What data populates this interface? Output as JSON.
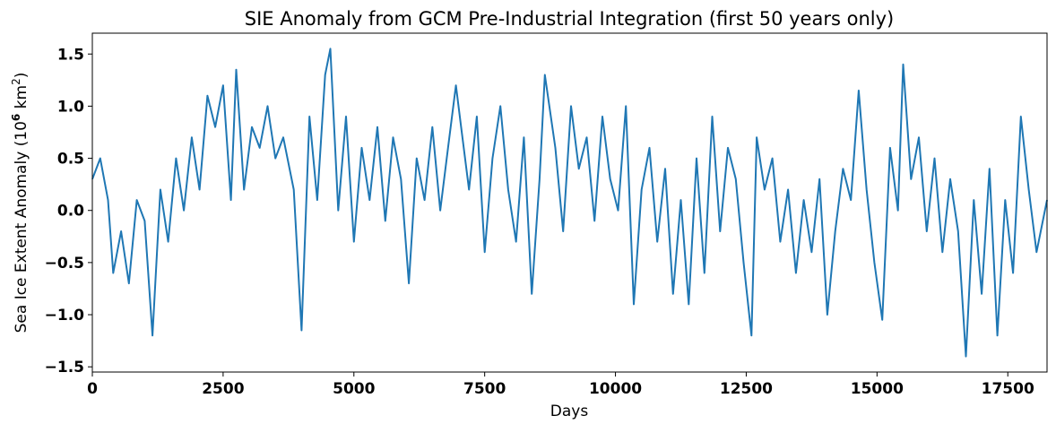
{
  "chart_data": {
    "type": "line",
    "title": "SIE Anomaly from GCM Pre-Industrial Integration (first 50 years only)",
    "xlabel": "Days",
    "ylabel": "Sea Ice Extent Anomaly (10",
    "ylabel_sup": "6",
    "ylabel_unit": " km",
    "ylabel_unit_sup": "2",
    "ylabel_close": ")",
    "xlim": [
      0,
      18250
    ],
    "ylim": [
      -1.55,
      1.7
    ],
    "x_ticks": [
      0,
      2500,
      5000,
      7500,
      10000,
      12500,
      15000,
      17500
    ],
    "x_tick_labels": [
      "0",
      "2500",
      "5000",
      "7500",
      "10000",
      "12500",
      "15000",
      "17500"
    ],
    "y_ticks": [
      -1.5,
      -1.0,
      -0.5,
      0.0,
      0.5,
      1.0,
      1.5
    ],
    "y_tick_labels": [
      "−1.5",
      "−1.0",
      "−0.5",
      "0.0",
      "0.5",
      "1.0",
      "1.5"
    ],
    "grid": false,
    "line_color": "#1f77b4",
    "series": [
      {
        "x": [
          0,
          150,
          300,
          400,
          550,
          700,
          850,
          1000,
          1150,
          1300,
          1450,
          1600,
          1750,
          1900,
          2050,
          2200,
          2350,
          2500,
          2650,
          2750,
          2900,
          3050,
          3200,
          3350,
          3500,
          3650,
          3850,
          4000,
          4150,
          4300,
          4450,
          4550,
          4700,
          4850,
          5000,
          5150,
          5300,
          5450,
          5600,
          5750,
          5900,
          6050,
          6200,
          6350,
          6500,
          6650,
          6800,
          6950,
          7050,
          7200,
          7350,
          7500,
          7650,
          7800,
          7950,
          8100,
          8250,
          8400,
          8550,
          8650,
          8850,
          9000,
          9150,
          9300,
          9450,
          9600,
          9750,
          9900,
          10050,
          10200,
          10350,
          10500,
          10650,
          10800,
          10950,
          11100,
          11250,
          11400,
          11550,
          11700,
          11850,
          12000,
          12150,
          12300,
          12450,
          12600,
          12700,
          12850,
          13000,
          13150,
          13300,
          13450,
          13600,
          13750,
          13900,
          14050,
          14200,
          14350,
          14500,
          14650,
          14800,
          14950,
          15100,
          15250,
          15400,
          15500,
          15650,
          15800,
          15950,
          16100,
          16250,
          16400,
          16550,
          16700,
          16850,
          17000,
          17150,
          17300,
          17450,
          17600,
          17750,
          17900,
          18050,
          18250
        ],
        "values": [
          0.3,
          0.5,
          0.1,
          -0.6,
          -0.2,
          -0.7,
          0.1,
          -0.1,
          -1.2,
          0.2,
          -0.3,
          0.5,
          0.0,
          0.7,
          0.2,
          1.1,
          0.8,
          1.2,
          0.1,
          1.35,
          0.2,
          0.8,
          0.6,
          1.0,
          0.5,
          0.7,
          0.2,
          -1.15,
          0.9,
          0.1,
          1.3,
          1.55,
          0.0,
          0.9,
          -0.3,
          0.6,
          0.1,
          0.8,
          -0.1,
          0.7,
          0.3,
          -0.7,
          0.5,
          0.1,
          0.8,
          0.0,
          0.6,
          1.2,
          0.8,
          0.2,
          0.9,
          -0.4,
          0.5,
          1.0,
          0.2,
          -0.3,
          0.7,
          -0.8,
          0.3,
          1.3,
          0.6,
          -0.2,
          1.0,
          0.4,
          0.7,
          -0.1,
          0.9,
          0.3,
          0.0,
          1.0,
          -0.9,
          0.2,
          0.6,
          -0.3,
          0.4,
          -0.8,
          0.1,
          -0.9,
          0.5,
          -0.6,
          0.9,
          -0.2,
          0.6,
          0.3,
          -0.5,
          -1.2,
          0.7,
          0.2,
          0.5,
          -0.3,
          0.2,
          -0.6,
          0.1,
          -0.4,
          0.3,
          -1.0,
          -0.2,
          0.4,
          0.1,
          1.15,
          0.2,
          -0.5,
          -1.05,
          0.6,
          0.0,
          1.4,
          0.3,
          0.7,
          -0.2,
          0.5,
          -0.4,
          0.3,
          -0.2,
          -1.4,
          0.1,
          -0.8,
          0.4,
          -1.2,
          0.1,
          -0.6,
          0.9,
          0.2,
          -0.4,
          0.1
        ]
      }
    ]
  }
}
